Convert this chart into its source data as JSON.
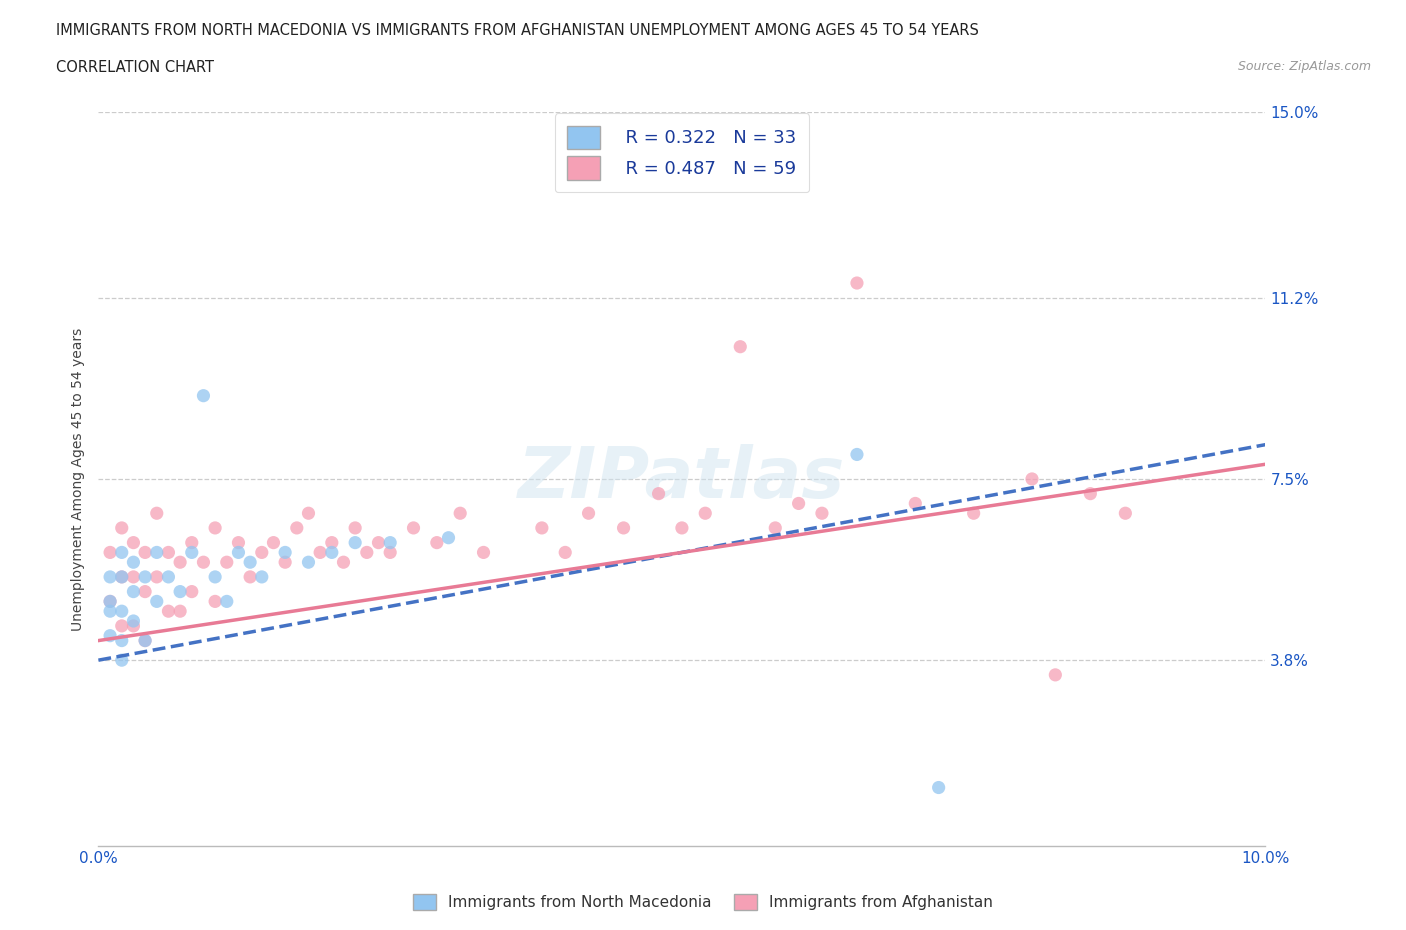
{
  "title_line1": "IMMIGRANTS FROM NORTH MACEDONIA VS IMMIGRANTS FROM AFGHANISTAN UNEMPLOYMENT AMONG AGES 45 TO 54 YEARS",
  "title_line2": "CORRELATION CHART",
  "source_text": "Source: ZipAtlas.com",
  "ylabel": "Unemployment Among Ages 45 to 54 years",
  "xlim": [
    0.0,
    0.1
  ],
  "ylim": [
    0.0,
    0.15
  ],
  "color_blue": "#92C5F0",
  "color_pink": "#F5A0B5",
  "color_blue_line": "#4472C4",
  "color_pink_line": "#E87A95",
  "legend_r1": "R = 0.322",
  "legend_n1": "N = 33",
  "legend_r2": "R = 0.487",
  "legend_n2": "N = 59",
  "watermark": "ZIPatlas",
  "ytick_values": [
    0.0,
    0.038,
    0.075,
    0.112,
    0.15
  ],
  "ytick_labels": [
    "",
    "3.8%",
    "7.5%",
    "11.2%",
    "15.0%"
  ],
  "grid_lines": [
    0.038,
    0.075,
    0.112,
    0.15
  ],
  "blue_scatter_x": [
    0.001,
    0.001,
    0.001,
    0.001,
    0.002,
    0.002,
    0.002,
    0.002,
    0.002,
    0.003,
    0.003,
    0.003,
    0.004,
    0.004,
    0.005,
    0.005,
    0.006,
    0.007,
    0.008,
    0.009,
    0.01,
    0.011,
    0.012,
    0.013,
    0.014,
    0.016,
    0.018,
    0.02,
    0.022,
    0.025,
    0.03,
    0.065,
    0.072
  ],
  "blue_scatter_y": [
    0.055,
    0.05,
    0.048,
    0.043,
    0.06,
    0.055,
    0.048,
    0.042,
    0.038,
    0.058,
    0.052,
    0.046,
    0.055,
    0.042,
    0.06,
    0.05,
    0.055,
    0.052,
    0.06,
    0.092,
    0.055,
    0.05,
    0.06,
    0.058,
    0.055,
    0.06,
    0.058,
    0.06,
    0.062,
    0.062,
    0.063,
    0.08,
    0.012
  ],
  "pink_scatter_x": [
    0.001,
    0.001,
    0.002,
    0.002,
    0.002,
    0.003,
    0.003,
    0.003,
    0.004,
    0.004,
    0.004,
    0.005,
    0.005,
    0.006,
    0.006,
    0.007,
    0.007,
    0.008,
    0.008,
    0.009,
    0.01,
    0.01,
    0.011,
    0.012,
    0.013,
    0.014,
    0.015,
    0.016,
    0.017,
    0.018,
    0.019,
    0.02,
    0.021,
    0.022,
    0.023,
    0.024,
    0.025,
    0.027,
    0.029,
    0.031,
    0.033,
    0.038,
    0.04,
    0.042,
    0.045,
    0.048,
    0.05,
    0.052,
    0.055,
    0.058,
    0.06,
    0.062,
    0.065,
    0.07,
    0.075,
    0.08,
    0.082,
    0.085,
    0.088
  ],
  "pink_scatter_y": [
    0.06,
    0.05,
    0.065,
    0.055,
    0.045,
    0.062,
    0.055,
    0.045,
    0.06,
    0.052,
    0.042,
    0.068,
    0.055,
    0.06,
    0.048,
    0.058,
    0.048,
    0.062,
    0.052,
    0.058,
    0.065,
    0.05,
    0.058,
    0.062,
    0.055,
    0.06,
    0.062,
    0.058,
    0.065,
    0.068,
    0.06,
    0.062,
    0.058,
    0.065,
    0.06,
    0.062,
    0.06,
    0.065,
    0.062,
    0.068,
    0.06,
    0.065,
    0.06,
    0.068,
    0.065,
    0.072,
    0.065,
    0.068,
    0.102,
    0.065,
    0.07,
    0.068,
    0.115,
    0.07,
    0.068,
    0.075,
    0.035,
    0.072,
    0.068
  ],
  "blue_line_x": [
    0.0,
    0.1
  ],
  "blue_line_y": [
    0.038,
    0.082
  ],
  "pink_line_x": [
    0.0,
    0.1
  ],
  "pink_line_y": [
    0.042,
    0.078
  ],
  "legend_label1": "Immigrants from North Macedonia",
  "legend_label2": "Immigrants from Afghanistan"
}
